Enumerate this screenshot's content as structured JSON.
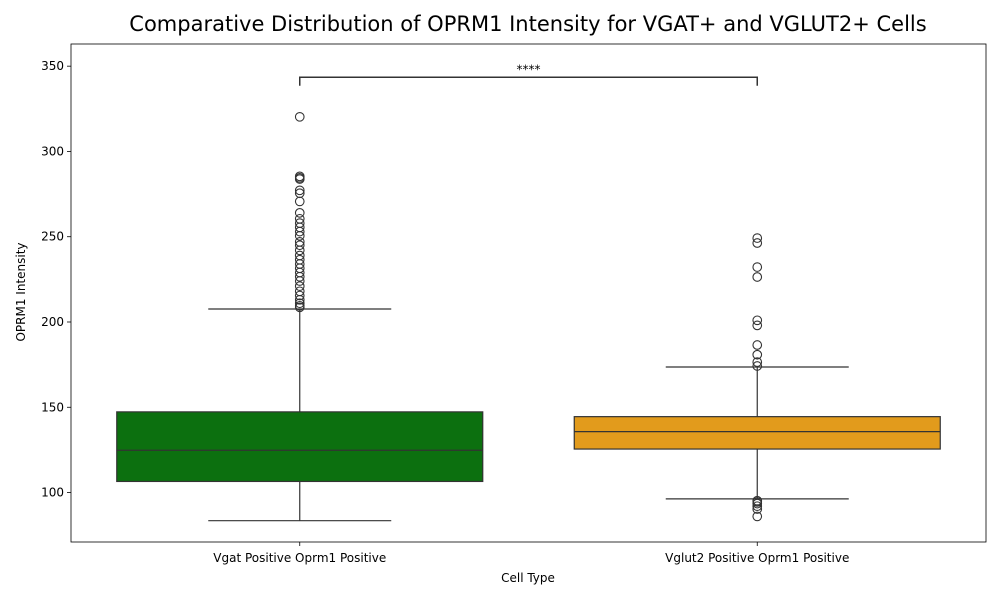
{
  "chart_data": {
    "type": "box",
    "title": "Comparative Distribution of OPRM1 Intensity for VGAT+ and VGLUT2+ Cells",
    "xlabel": "Cell Type",
    "ylabel": "OPRM1 Intensity",
    "ylim": [
      71,
      363
    ],
    "yticks": [
      100,
      150,
      200,
      250,
      300,
      350
    ],
    "grid": false,
    "legend": "none",
    "categories": [
      "Vgat Positive Oprm1 Positive",
      "Vglut2 Positive Oprm1 Positive"
    ],
    "boxes": [
      {
        "category": "Vgat Positive Oprm1 Positive",
        "color": "#0c700f",
        "whisker_low": 83.5,
        "q1": 106.5,
        "median": 124.8,
        "q3": 147.3,
        "whisker_high": 207.6,
        "outliers": [
          320.3,
          285.4,
          284.5,
          283.8,
          277.2,
          275.5,
          270.7,
          264.0,
          260.5,
          258.0,
          255.5,
          253.0,
          250.5,
          247.0,
          245.0,
          242.0,
          239.0,
          236.5,
          234.0,
          231.5,
          229.0,
          226.5,
          224.0,
          221.0,
          218.0,
          215.5,
          213.0,
          211.0,
          209.5,
          208.6
        ]
      },
      {
        "category": "Vglut2 Positive Oprm1 Positive",
        "color": "#e29b1c",
        "whisker_low": 96.3,
        "q1": 125.5,
        "median": 135.7,
        "q3": 144.5,
        "whisker_high": 173.6,
        "outliers": [
          249.2,
          246.3,
          232.2,
          226.4,
          201.0,
          198.0,
          186.5,
          180.8,
          176.5,
          174.2,
          95.2,
          94.5,
          93.5,
          92.0,
          90.3,
          86.0
        ]
      }
    ],
    "annotation": {
      "text": "****",
      "from": "Vgat Positive Oprm1 Positive",
      "to": "Vglut2 Positive Oprm1 Positive",
      "y_bar": 343.5,
      "y_tip": 338.5
    }
  }
}
